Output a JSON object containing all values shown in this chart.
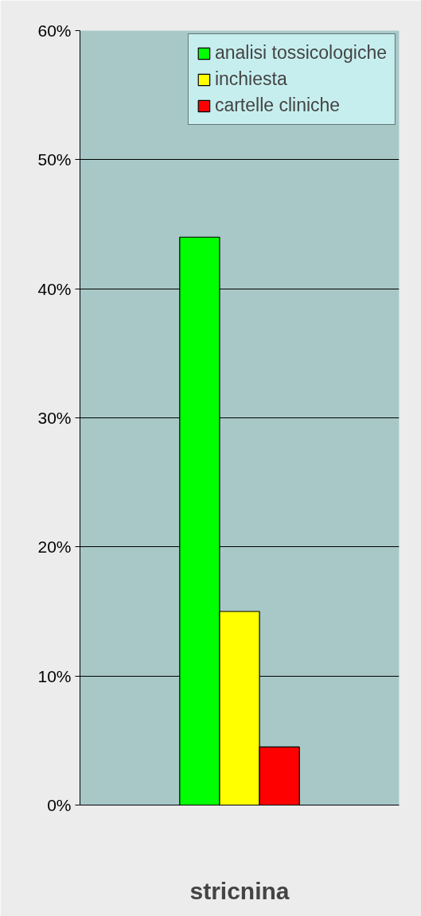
{
  "chart_data": {
    "type": "bar",
    "categories": [
      "stricnina"
    ],
    "series": [
      {
        "name": "analisi tossicologiche",
        "color": "#00ff00",
        "values": [
          44
        ]
      },
      {
        "name": "inchiesta",
        "color": "#ffff00",
        "values": [
          15
        ]
      },
      {
        "name": "cartelle cliniche",
        "color": "#ff0000",
        "values": [
          4.5
        ]
      }
    ],
    "ylim": [
      0,
      60
    ],
    "yticks": [
      {
        "value": 0,
        "label": "0%"
      },
      {
        "value": 10,
        "label": "10%"
      },
      {
        "value": 20,
        "label": "20%"
      },
      {
        "value": 30,
        "label": "30%"
      },
      {
        "value": 40,
        "label": "40%"
      },
      {
        "value": 50,
        "label": "50%"
      },
      {
        "value": 60,
        "label": "60%"
      }
    ],
    "grid": "y",
    "legend": "top right"
  }
}
